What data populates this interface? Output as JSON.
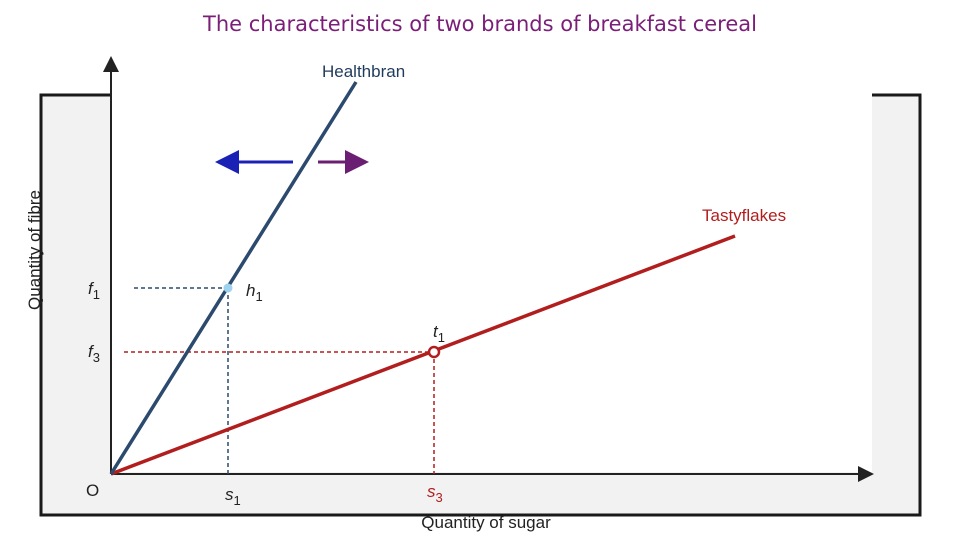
{
  "title": "The characteristics of two brands of breakfast cereal",
  "axes": {
    "x_label": "Quantity of sugar",
    "y_label": "Quantity of fibre",
    "origin_label": "O"
  },
  "lines": {
    "healthbran": {
      "label": "Healthbran",
      "color": "#2b4a6e"
    },
    "tastyflakes": {
      "label": "Tastyflakes",
      "color": "#b21e1e"
    }
  },
  "points": {
    "h1": {
      "name": "h",
      "sub": "1"
    },
    "t1": {
      "name": "t",
      "sub": "1"
    }
  },
  "ticks": {
    "f1": {
      "name": "f",
      "sub": "1"
    },
    "f3": {
      "name": "f",
      "sub": "3"
    },
    "s1": {
      "name": "s",
      "sub": "1"
    },
    "s3": {
      "name": "s",
      "sub": "3"
    }
  },
  "arrows": {
    "left": {
      "color": "#1a22b5"
    },
    "right": {
      "color": "#6b1f72"
    }
  }
}
